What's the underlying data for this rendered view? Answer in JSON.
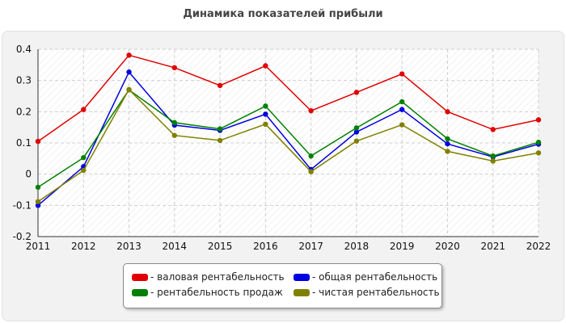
{
  "chart_data": {
    "type": "line",
    "title": "Динамика показателей прибыли",
    "xlabel": "",
    "ylabel": "",
    "x": [
      "2011",
      "2012",
      "2013",
      "2014",
      "2015",
      "2016",
      "2017",
      "2018",
      "2019",
      "2020",
      "2021",
      "2022"
    ],
    "ylim": [
      -0.2,
      0.4
    ],
    "yticks": [
      "0.4",
      "0.3",
      "0.2",
      "0.1",
      "0",
      "-0.1",
      "-0.2"
    ],
    "grid": true,
    "legend_position": "bottom",
    "series": [
      {
        "name": "- валовая рентабельность",
        "color": "#e00000",
        "values": [
          0.105,
          0.207,
          0.381,
          0.341,
          0.284,
          0.347,
          0.203,
          0.262,
          0.321,
          0.2,
          0.143,
          0.174
        ]
      },
      {
        "name": "- общая рентабельность",
        "color": "#0000e0",
        "values": [
          -0.1,
          0.024,
          0.327,
          0.157,
          0.14,
          0.192,
          0.015,
          0.135,
          0.207,
          0.097,
          0.055,
          0.096
        ]
      },
      {
        "name": "- рентабельность продаж",
        "color": "#008000",
        "values": [
          -0.042,
          0.053,
          0.27,
          0.165,
          0.145,
          0.218,
          0.058,
          0.148,
          0.232,
          0.113,
          0.058,
          0.102
        ]
      },
      {
        "name": "- чистая рентабельность",
        "color": "#808000",
        "values": [
          -0.088,
          0.012,
          0.271,
          0.124,
          0.108,
          0.16,
          0.008,
          0.106,
          0.158,
          0.073,
          0.042,
          0.068
        ]
      }
    ]
  }
}
